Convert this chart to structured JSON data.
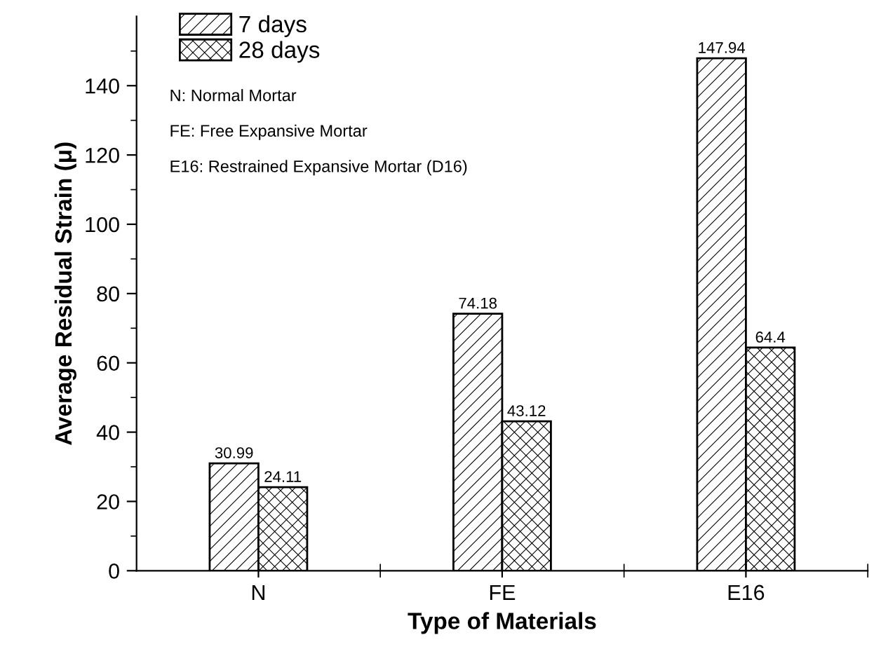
{
  "chart_data": {
    "type": "bar",
    "xlabel": "Type of Materials",
    "ylabel": "Average Residual Strain (μ)",
    "categories": [
      "N",
      "FE",
      "E16"
    ],
    "series": [
      {
        "name": "7 days",
        "color": "#000000",
        "values": [
          30.99,
          74.18,
          147.94
        ]
      },
      {
        "name": "28 days",
        "color": "#000000",
        "values": [
          24.11,
          43.12,
          64.4
        ]
      }
    ],
    "ylim": [
      0,
      160
    ],
    "yticks": [
      0,
      20,
      40,
      60,
      80,
      100,
      120,
      140
    ],
    "grid": false,
    "legend": "top left",
    "data_labels": true,
    "annotations": [
      "N: Normal Mortar",
      "FE: Free Expansive Mortar",
      "E16: Restrained Expansive Mortar (D16)"
    ]
  }
}
